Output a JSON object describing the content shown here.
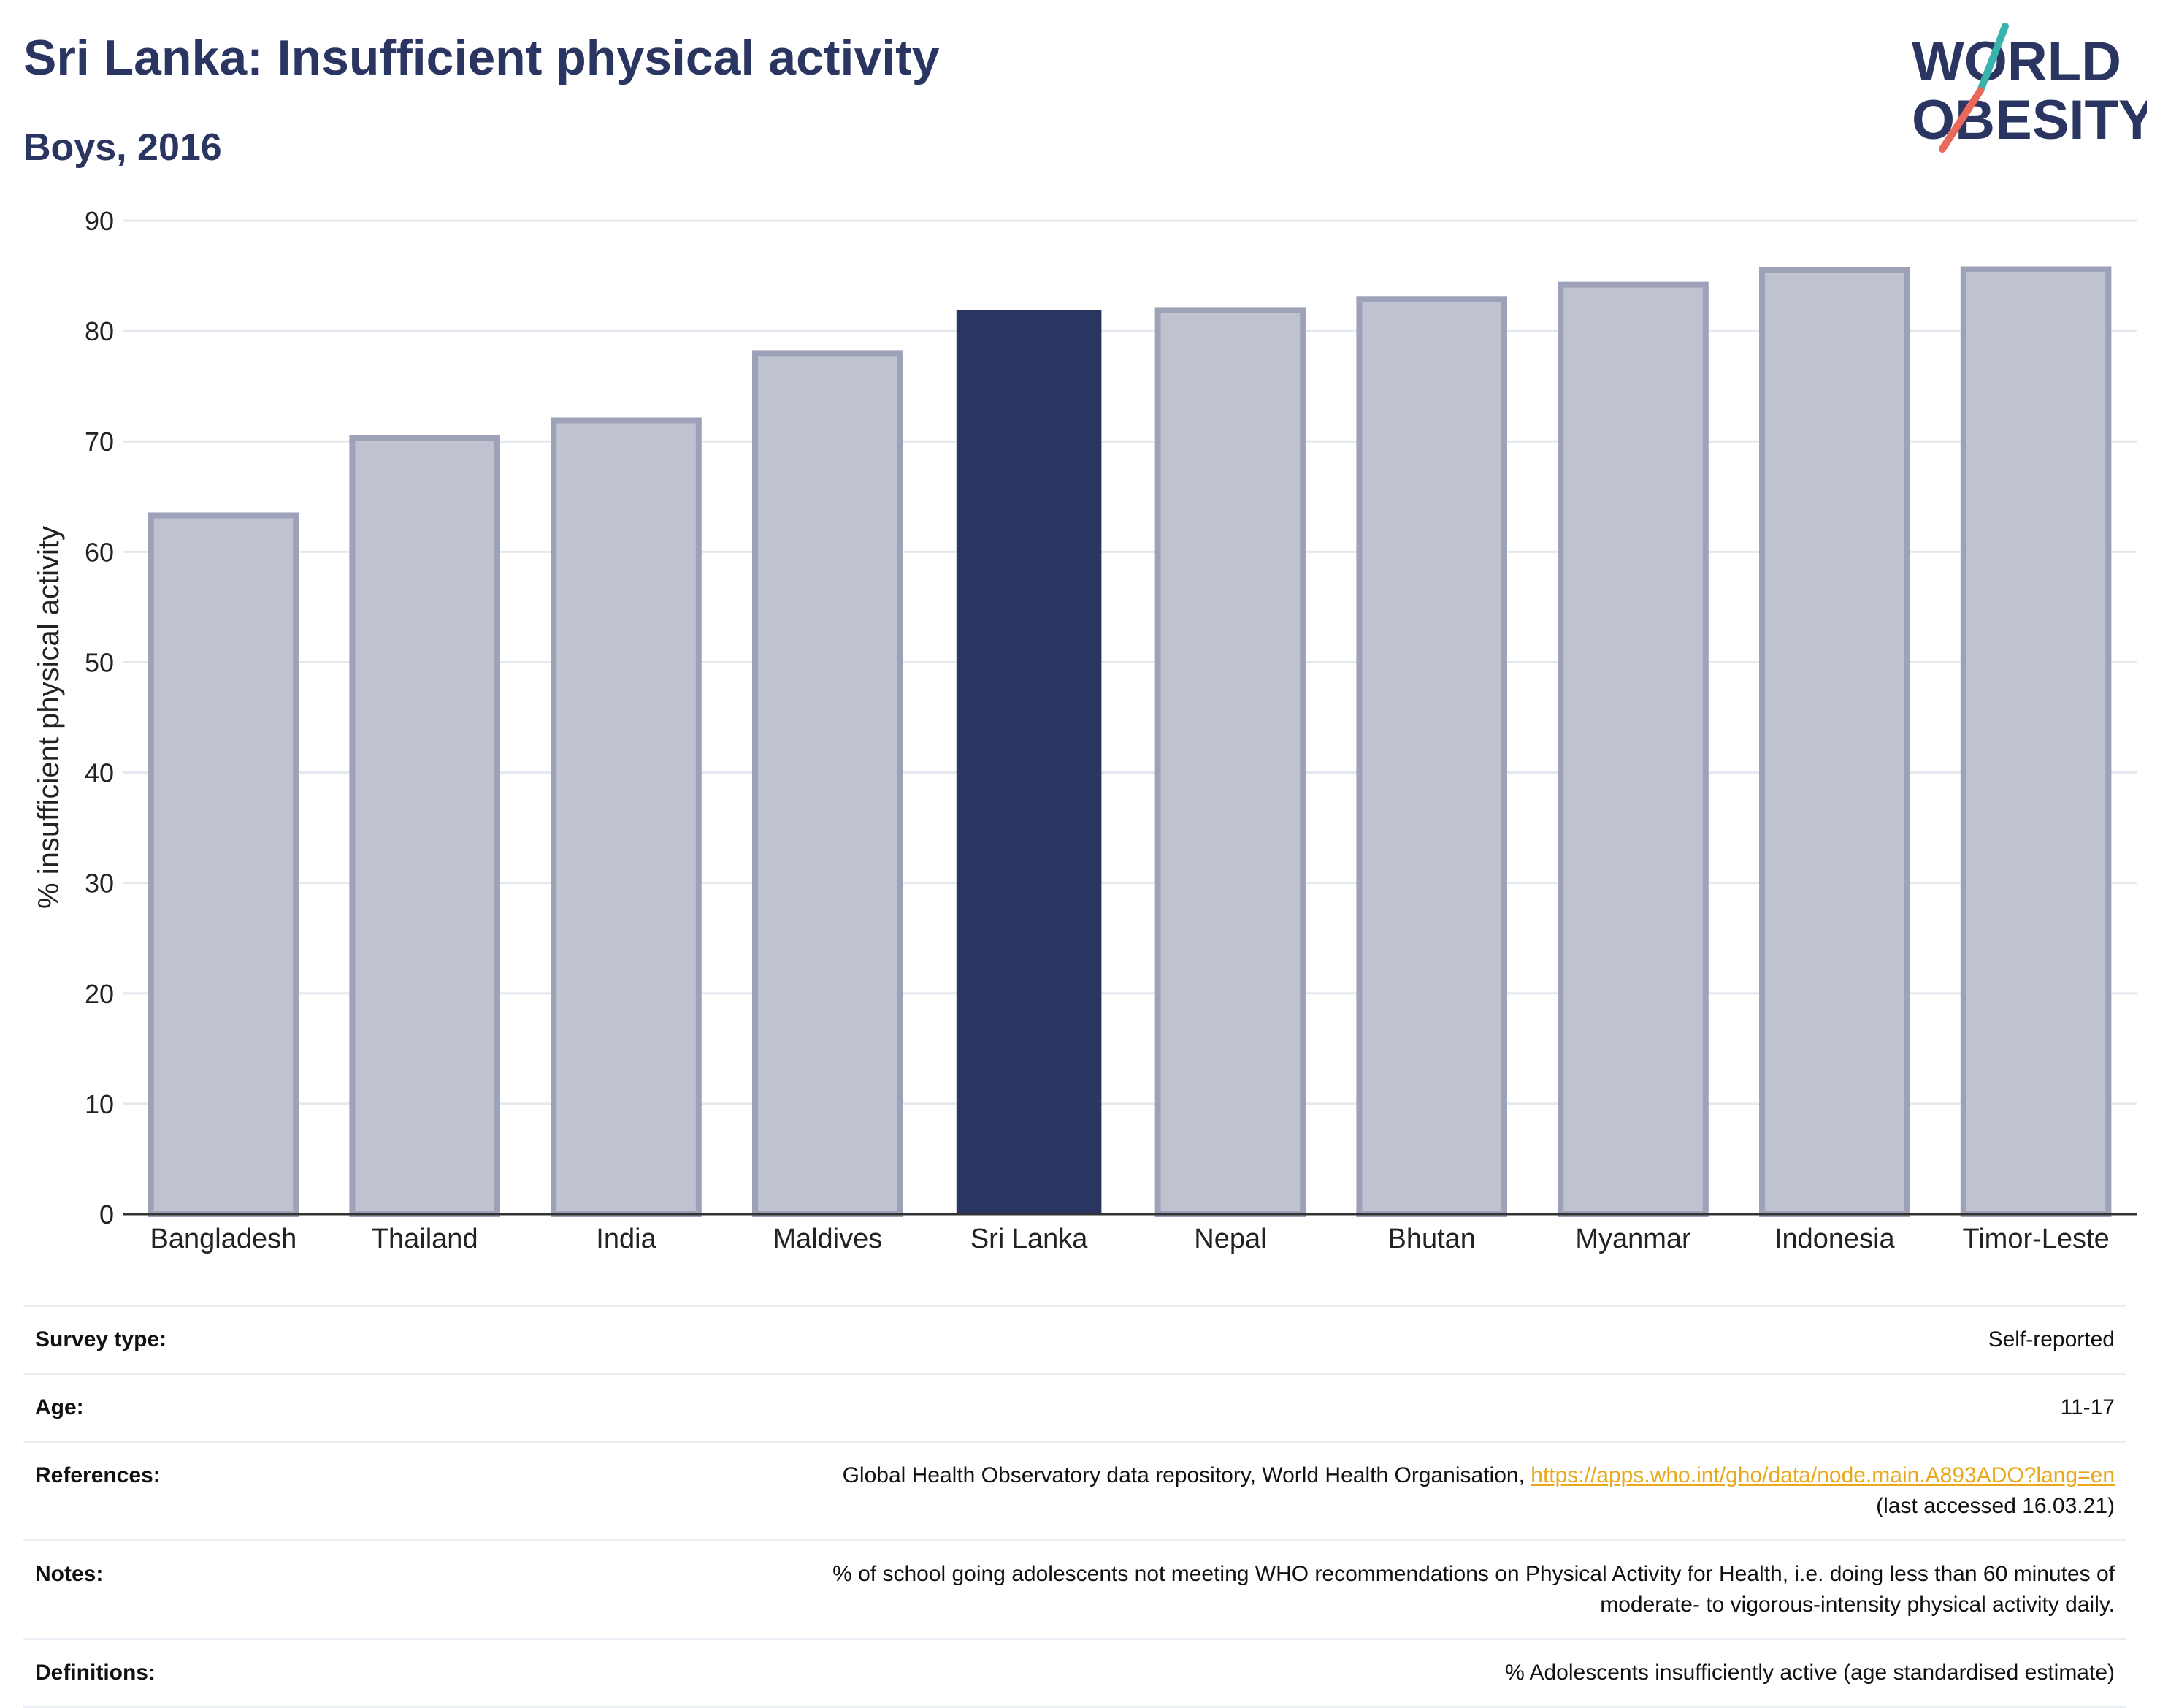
{
  "header": {
    "title": "Sri Lanka: Insufficient physical activity",
    "subtitle": "Boys, 2016"
  },
  "logo": {
    "line1": "WORLD",
    "line2": "OBESITY",
    "text_color": "#2a3561",
    "slash_colors": [
      "#39b3ac",
      "#e8685a"
    ]
  },
  "colors": {
    "highlight": "#2a3561",
    "bar_fill": "#bfc2cf",
    "bar_stroke": "#9da2b9",
    "grid": "#e6e8ef",
    "link": "#e8a81a"
  },
  "chart_data": {
    "type": "bar",
    "title": "",
    "xlabel": "",
    "ylabel": "% insufficient physical activity",
    "ylim": [
      0,
      90
    ],
    "yticks": [
      0,
      10,
      20,
      30,
      40,
      50,
      60,
      70,
      80,
      90
    ],
    "grid": true,
    "highlight": "Sri Lanka",
    "categories": [
      "Bangladesh",
      "Thailand",
      "India",
      "Maldives",
      "Sri Lanka",
      "Nepal",
      "Bhutan",
      "Myanmar",
      "Indonesia",
      "Timor-Leste"
    ],
    "values": [
      63.3,
      70.3,
      71.9,
      78.0,
      81.9,
      81.9,
      82.9,
      84.2,
      85.5,
      85.6
    ]
  },
  "meta": [
    {
      "key": "Survey type:",
      "value": "Self-reported"
    },
    {
      "key": "Age:",
      "value": "11-17"
    },
    {
      "key": "References:",
      "value": "Global Health Observatory data repository, World Health Organisation,",
      "link": "https://apps.who.int/gho/data/node.main.A893ADO?lang=en",
      "value2": "(last accessed 16.03.21)"
    },
    {
      "key": "Notes:",
      "value": "% of school going adolescents not meeting WHO recommendations on Physical Activity for Health, i.e. doing less than 60 minutes of",
      "value2": "moderate- to vigorous-intensity physical activity daily."
    },
    {
      "key": "Definitions:",
      "value": "% Adolescents insufficiently active (age standardised estimate)"
    }
  ]
}
